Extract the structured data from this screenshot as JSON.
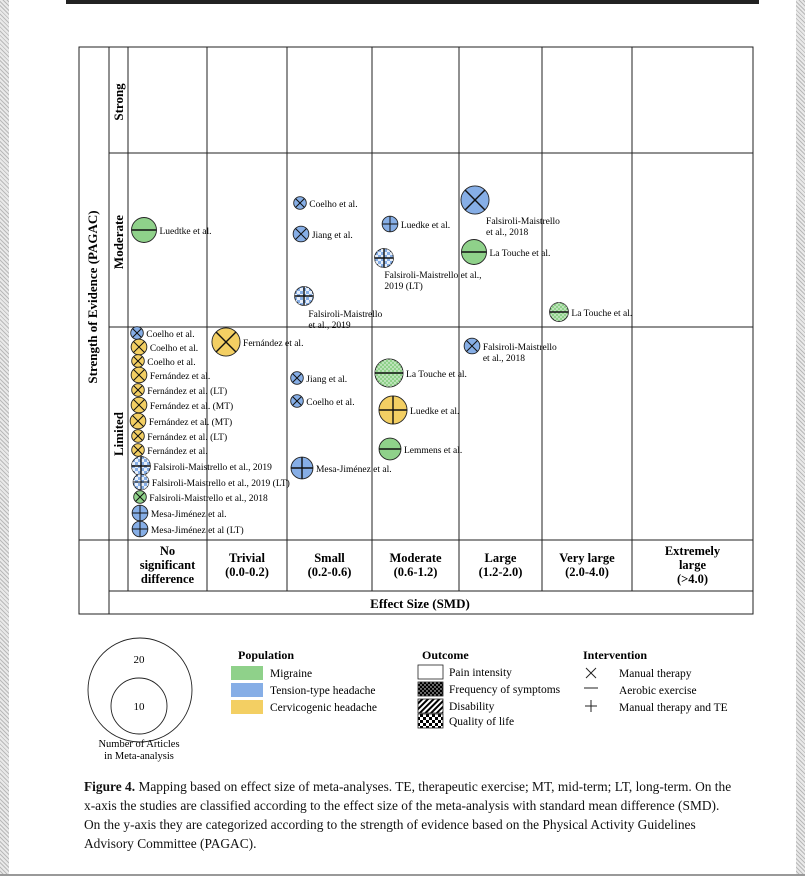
{
  "figure": {
    "y_axis_title": "Strength of Evidence (PAGAC)",
    "x_axis_title": "Effect Size (SMD)",
    "rows": [
      "Strong",
      "Moderate",
      "Limited"
    ],
    "columns": [
      [
        "No",
        "significant",
        "difference"
      ],
      [
        "Trivial",
        "(0.0-0.2)"
      ],
      [
        "Small",
        "(0.2-0.6)"
      ],
      [
        "Moderate",
        "(0.6-1.2)"
      ],
      [
        "Large",
        "(1.2-2.0)"
      ],
      [
        "Very large",
        "(2.0-4.0)"
      ],
      [
        "Extremely",
        "large",
        "(>4.0)"
      ]
    ],
    "colors": {
      "migraine": "#8fd18a",
      "tension": "#86aee6",
      "cervicogenic": "#f3cf63"
    },
    "studies": [
      {
        "row": "Moderate",
        "col": 0,
        "pop": "migraine",
        "out": "pain",
        "int": "aerobic",
        "n": 6,
        "label": [
          "Luedtke et al."
        ]
      },
      {
        "row": "Moderate",
        "col": 2,
        "pop": "tension",
        "out": "pain",
        "int": "manual",
        "n": 2,
        "label": [
          "Coelho et al."
        ]
      },
      {
        "row": "Moderate",
        "col": 2,
        "pop": "tension",
        "out": "pain",
        "int": "manual",
        "n": 3,
        "label": [
          "Jiang et al."
        ]
      },
      {
        "row": "Moderate",
        "col": 2,
        "pop": "tension",
        "out": "qol",
        "int": "combined",
        "n": 4,
        "label": [
          "Falsiroli-Maistrello",
          "et al., 2019"
        ]
      },
      {
        "row": "Moderate",
        "col": 3,
        "pop": "tension",
        "out": "pain",
        "int": "combined",
        "n": 3,
        "label": [
          "Luedke et al."
        ]
      },
      {
        "row": "Moderate",
        "col": 3,
        "pop": "tension",
        "out": "qol",
        "int": "combined",
        "n": 4,
        "label": [
          "Falsiroli-Maistrello et al.,",
          "2019 (LT)"
        ]
      },
      {
        "row": "Moderate",
        "col": 4,
        "pop": "tension",
        "out": "pain",
        "int": "manual",
        "n": 7,
        "label": [
          "Falsiroli-Maistrello",
          "et al., 2018"
        ]
      },
      {
        "row": "Moderate",
        "col": 4,
        "pop": "migraine",
        "out": "pain",
        "int": "aerobic",
        "n": 6,
        "label": [
          "La Touche et al."
        ]
      },
      {
        "row": "Moderate",
        "col": 5,
        "pop": "migraine",
        "out": "frequency",
        "int": "aerobic",
        "n": 4,
        "label": [
          "La Touche et al."
        ]
      },
      {
        "row": "Limited",
        "col": 0,
        "pop": "tension",
        "out": "pain",
        "int": "manual",
        "n": 2,
        "label": [
          "Coelho et al."
        ]
      },
      {
        "row": "Limited",
        "col": 0,
        "pop": "cervicogenic",
        "out": "pain",
        "int": "manual",
        "n": 3,
        "label": [
          "Coelho et al."
        ]
      },
      {
        "row": "Limited",
        "col": 0,
        "pop": "cervicogenic",
        "out": "pain",
        "int": "manual",
        "n": 2,
        "label": [
          "Coelho et al."
        ]
      },
      {
        "row": "Limited",
        "col": 0,
        "pop": "cervicogenic",
        "out": "pain",
        "int": "manual",
        "n": 3,
        "label": [
          "Fernández et al."
        ]
      },
      {
        "row": "Limited",
        "col": 0,
        "pop": "cervicogenic",
        "out": "pain",
        "int": "manual",
        "n": 2,
        "label": [
          "Fernández et al. (LT)"
        ]
      },
      {
        "row": "Limited",
        "col": 0,
        "pop": "cervicogenic",
        "out": "pain",
        "int": "manual",
        "n": 3,
        "label": [
          "Fernández et al. (MT)"
        ]
      },
      {
        "row": "Limited",
        "col": 0,
        "pop": "cervicogenic",
        "out": "pain",
        "int": "manual",
        "n": 3,
        "label": [
          "Fernández et al. (MT)"
        ]
      },
      {
        "row": "Limited",
        "col": 0,
        "pop": "cervicogenic",
        "out": "pain",
        "int": "manual",
        "n": 2,
        "label": [
          "Fernández et al. (LT)"
        ]
      },
      {
        "row": "Limited",
        "col": 0,
        "pop": "cervicogenic",
        "out": "pain",
        "int": "manual",
        "n": 2,
        "label": [
          "Fernández et al."
        ]
      },
      {
        "row": "Limited",
        "col": 0,
        "pop": "tension",
        "out": "qol",
        "int": "combined",
        "n": 4,
        "label": [
          "Falsiroli-Maistrello et al., 2019"
        ]
      },
      {
        "row": "Limited",
        "col": 0,
        "pop": "tension",
        "out": "qol",
        "int": "combined",
        "n": 3,
        "label": [
          "Falsiroli-Maistrello et al., 2019 (LT)"
        ]
      },
      {
        "row": "Limited",
        "col": 0,
        "pop": "migraine",
        "out": "pain",
        "int": "manual",
        "n": 2,
        "label": [
          "Falsiroli-Maistrello et al., 2018"
        ]
      },
      {
        "row": "Limited",
        "col": 0,
        "pop": "tension",
        "out": "pain",
        "int": "combined",
        "n": 3,
        "label": [
          "Mesa-Jiménez et al."
        ]
      },
      {
        "row": "Limited",
        "col": 0,
        "pop": "tension",
        "out": "pain",
        "int": "combined",
        "n": 3,
        "label": [
          "Mesa-Jiménez et al (LT)"
        ]
      },
      {
        "row": "Limited",
        "col": 1,
        "pop": "cervicogenic",
        "out": "pain",
        "int": "manual",
        "n": 7,
        "label": [
          "Fernández et al."
        ]
      },
      {
        "row": "Limited",
        "col": 2,
        "pop": "tension",
        "out": "pain",
        "int": "manual",
        "n": 2,
        "label": [
          "Jiang et al."
        ]
      },
      {
        "row": "Limited",
        "col": 2,
        "pop": "tension",
        "out": "pain",
        "int": "manual",
        "n": 2,
        "label": [
          "Coelho et al."
        ]
      },
      {
        "row": "Limited",
        "col": 2,
        "pop": "tension",
        "out": "pain",
        "int": "combined",
        "n": 5,
        "label": [
          "Mesa-Jiménez et al."
        ]
      },
      {
        "row": "Limited",
        "col": 3,
        "pop": "migraine",
        "out": "frequency",
        "int": "aerobic",
        "n": 7,
        "label": [
          "La Touche et al."
        ]
      },
      {
        "row": "Limited",
        "col": 3,
        "pop": "cervicogenic",
        "out": "pain",
        "int": "combined",
        "n": 7,
        "label": [
          "Luedke et al."
        ]
      },
      {
        "row": "Limited",
        "col": 3,
        "pop": "migraine",
        "out": "pain",
        "int": "aerobic",
        "n": 5,
        "label": [
          "Lemmens et al."
        ]
      },
      {
        "row": "Limited",
        "col": 4,
        "pop": "tension",
        "out": "pain",
        "int": "manual",
        "n": 3,
        "label": [
          "Falsiroli-Maistrello",
          "et al., 2018"
        ]
      }
    ]
  },
  "legend": {
    "size_values": [
      "20",
      "10"
    ],
    "size_caption": [
      "Number of Articles",
      "in Meta-analysis"
    ],
    "population_title": "Population",
    "population": [
      {
        "key": "migraine",
        "label": "Migraine"
      },
      {
        "key": "tension",
        "label": "Tension-type headache"
      },
      {
        "key": "cervicogenic",
        "label": "Cervicogenic headache"
      }
    ],
    "outcome_title": "Outcome",
    "outcome": [
      {
        "key": "pain",
        "label": "Pain intensity"
      },
      {
        "key": "frequency",
        "label": "Frequency of symptoms"
      },
      {
        "key": "disability",
        "label": "Disability"
      },
      {
        "key": "qol",
        "label": "Quality of life"
      }
    ],
    "intervention_title": "Intervention",
    "intervention": [
      {
        "key": "manual",
        "symbol": "×",
        "label": "Manual therapy"
      },
      {
        "key": "aerobic",
        "symbol": "—",
        "label": "Aerobic exercise"
      },
      {
        "key": "combined",
        "symbol": "+",
        "label": "Manual therapy and TE"
      }
    ]
  },
  "caption": {
    "label": "Figure 4.",
    "text": "Mapping based on effect size of meta-analyses. TE, therapeutic exercise; MT, mid-term; LT, long-term. On the x-axis the studies are classified according to the effect size of the meta-analysis with standard mean difference (SMD). On the y-axis they are categorized according to the strength of evidence based on the Physical Activity Guidelines Advisory Committee (PAGAC)."
  }
}
